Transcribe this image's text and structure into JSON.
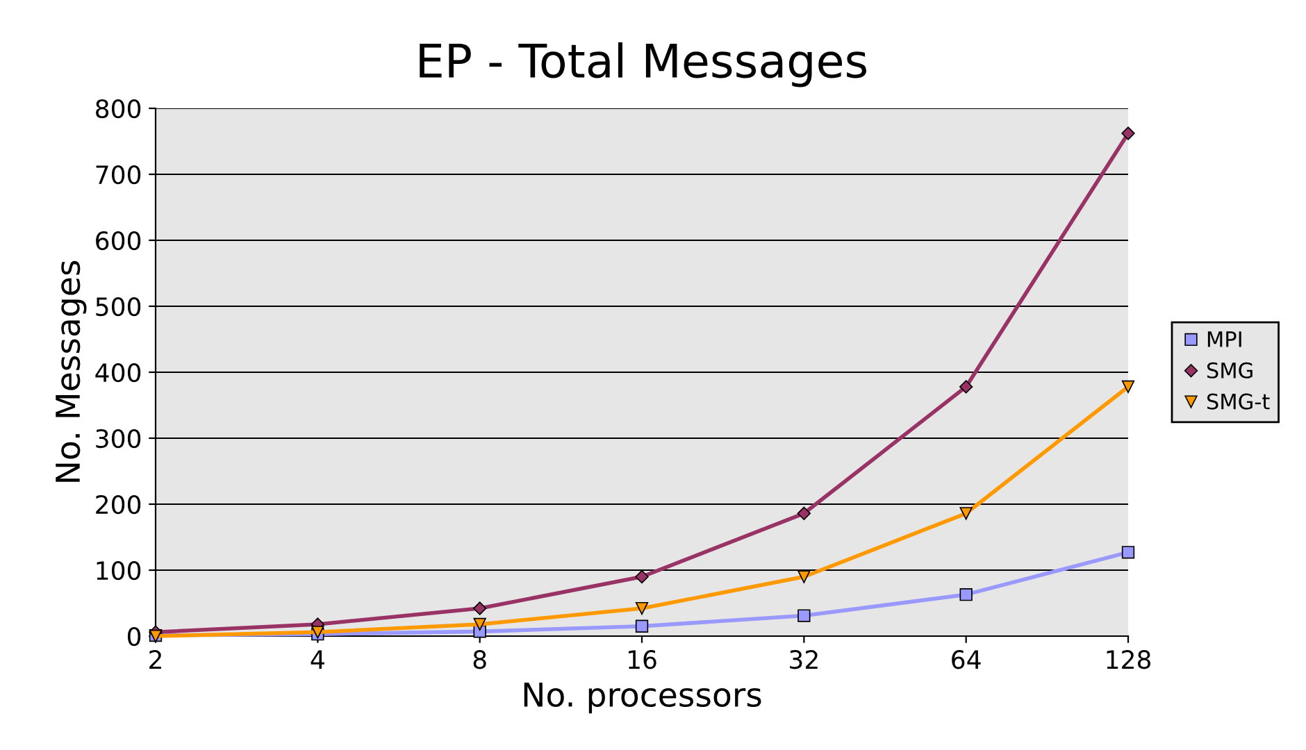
{
  "chart_data": {
    "type": "line",
    "title": "EP - Total Messages",
    "xlabel": "No. processors",
    "ylabel": "No. Messages",
    "categories": [
      "2",
      "4",
      "8",
      "16",
      "32",
      "64",
      "128"
    ],
    "series": [
      {
        "name": "MPI",
        "color": "#9999ff",
        "marker": "square",
        "values": [
          1,
          3,
          7,
          15,
          31,
          63,
          127
        ]
      },
      {
        "name": "SMG",
        "color": "#993366",
        "marker": "diamond",
        "values": [
          6,
          18,
          42,
          90,
          186,
          378,
          762
        ]
      },
      {
        "name": "SMG-t",
        "color": "#ff9900",
        "marker": "triangle",
        "values": [
          0,
          6,
          18,
          42,
          90,
          186,
          378
        ]
      }
    ],
    "ylim": [
      0,
      800
    ],
    "yticks": [
      0,
      100,
      200,
      300,
      400,
      500,
      600,
      700,
      800
    ],
    "grid": "y",
    "legend": "right",
    "line_style": "solid"
  }
}
